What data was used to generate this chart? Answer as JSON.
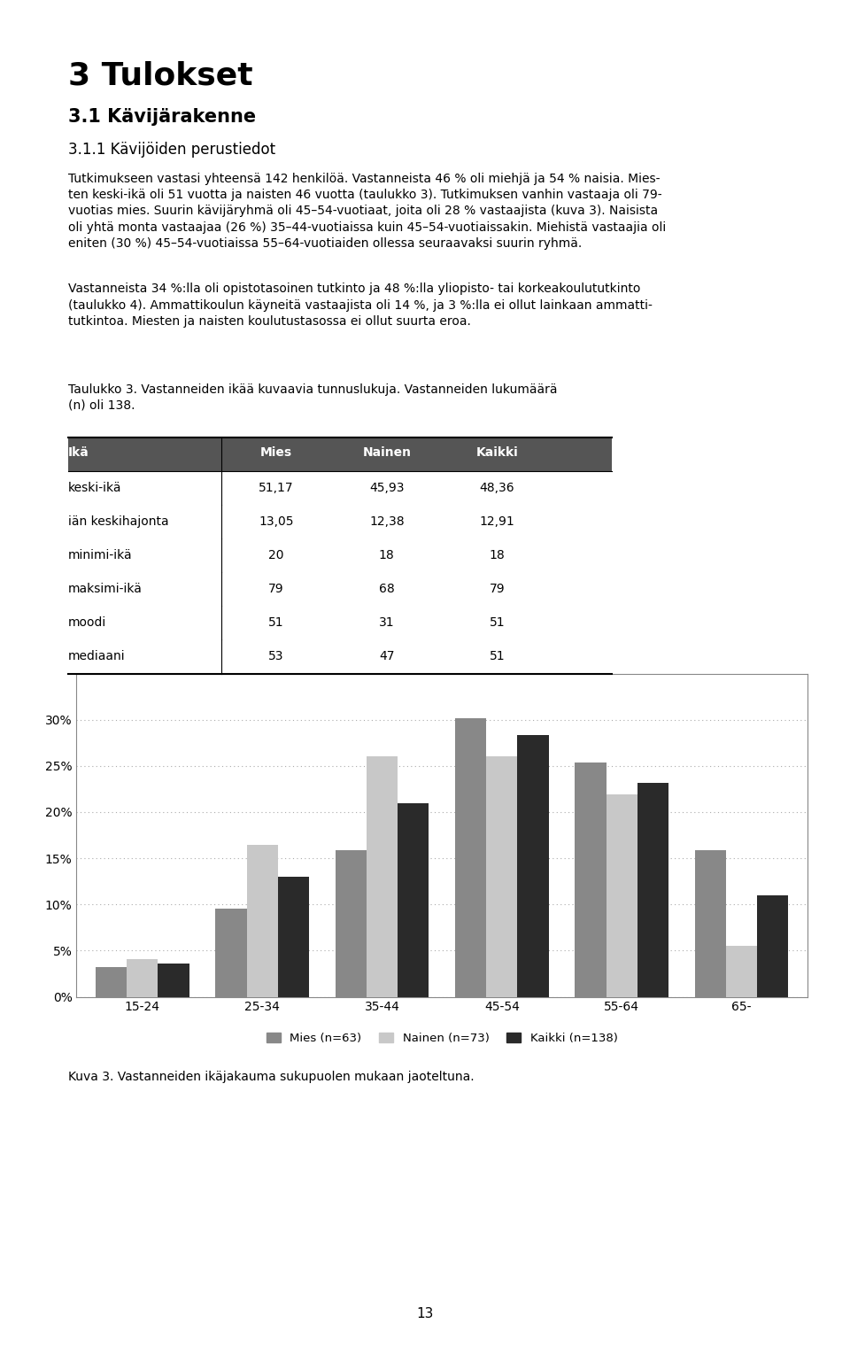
{
  "categories": [
    "15-24",
    "25-34",
    "35-44",
    "45-54",
    "55-64",
    "65-"
  ],
  "series": {
    "Mies (n=63)": [
      3.2,
      9.5,
      15.9,
      30.2,
      25.4,
      15.9
    ],
    "Nainen (n=73)": [
      4.1,
      16.4,
      26.0,
      26.0,
      21.9,
      5.5
    ],
    "Kaikki (n=138)": [
      3.6,
      13.0,
      21.0,
      28.3,
      23.2,
      11.0
    ]
  },
  "colors": {
    "Mies (n=63)": "#888888",
    "Nainen (n=73)": "#c8c8c8",
    "Kaikki (n=138)": "#2a2a2a"
  },
  "ylim": [
    0,
    35
  ],
  "yticks": [
    0,
    5,
    10,
    15,
    20,
    25,
    30
  ],
  "ytick_labels": [
    "0%",
    "5%",
    "10%",
    "15%",
    "20%",
    "25%",
    "30%"
  ],
  "background_color": "#ffffff",
  "chart_bg": "#ffffff",
  "grid_color": "#aaaaaa",
  "bar_width": 0.26,
  "figure_width": 9.6,
  "figure_height": 15.21,
  "title": "3 Tulokset",
  "h1": "3.1 Kävijärakenne",
  "h2": "3.1.1 Kävijöiden perustiedot",
  "para1": "Tutkimukseen vastasi yhteensä 142 henkilöä. Vastanneista 46 % oli miehjä ja 54 % naisia. Mies-\nten keski-ikä oli 51 vuotta ja naisten 46 vuotta (taulukko 3). Tutkimuksen vanhin vastaaja oli 79-\nvuotias mies. Suurin kävijäryhmä oli 45–54-vuotiaat, joita oli 28 % vastaajista (kuva 3). Naisista\noli yhtä monta vastaajaa (26 %) 35–44-vuotiaissa kuin 45–54-vuotiaissakin. Miehistä vastaajia oli\neniten (30 %) 45–54-vuotiaissa 55–64-vuotiaiden ollessa seuraavaksi suurin ryhmä.",
  "para2": "Vastanneista 34 %:lla oli opistotasoinen tutkinto ja 48 %:lla yliopisto- tai korkeakoulututkinto\n(taulukko 4). Ammattikoulun käyneitä vastaajista oli 14 %, ja 3 %:lla ei ollut lainkaan ammatti-\ntutkintoa. Miesten ja naisten koulutustasossa ei ollut suurta eroa.",
  "taulukko_caption": "Taulukko 3. Vastanneiden ikää kuvaavia tunnuslukuja. Vastanneiden lukumäärä\n(n) oli 138.",
  "table_headers": [
    "Ikä",
    "Mies",
    "Nainen",
    "Kaikki"
  ],
  "table_rows": [
    [
      "keski-ikä",
      "51,17",
      "45,93",
      "48,36"
    ],
    [
      "iän keskihajonta",
      "13,05",
      "12,38",
      "12,91"
    ],
    [
      "minimi-ikä",
      "20",
      "18",
      "18"
    ],
    [
      "maksimi-ikä",
      "79",
      "68",
      "79"
    ],
    [
      "moodi",
      "51",
      "31",
      "51"
    ],
    [
      "mediaani",
      "53",
      "47",
      "51"
    ]
  ],
  "kuva_caption": "Kuva 3. Vastanneiden ikäjakauma sukupuolen mukaan jaoteltuna.",
  "page_number": "13"
}
